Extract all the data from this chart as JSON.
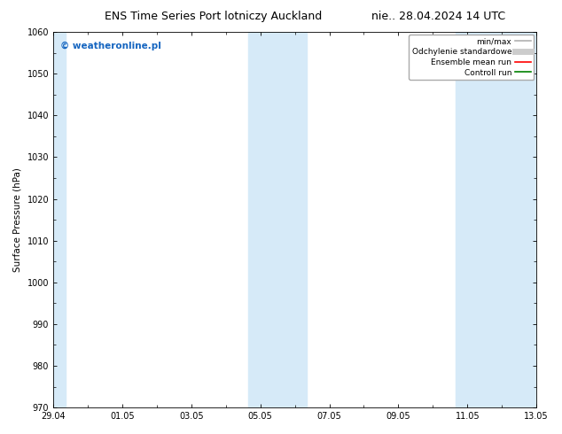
{
  "title": "ENS Time Series Port lotniczy Auckland",
  "title2": "nie.. 28.04.2024 14 UTC",
  "ylabel": "Surface Pressure (hPa)",
  "ylim": [
    970,
    1060
  ],
  "yticks": [
    970,
    980,
    990,
    1000,
    1010,
    1020,
    1030,
    1040,
    1050,
    1060
  ],
  "xtick_labels": [
    "29.04",
    "01.05",
    "03.05",
    "05.05",
    "07.05",
    "09.05",
    "11.05",
    "13.05"
  ],
  "xtick_positions": [
    0,
    2,
    4,
    6,
    8,
    10,
    12,
    14
  ],
  "xlim": [
    0,
    14
  ],
  "background_color": "#ffffff",
  "plot_bg_color": "#ffffff",
  "shaded_regions": [
    {
      "x_start": 0.0,
      "x_end": 0.35,
      "color": "#d6eaf8"
    },
    {
      "x_start": 5.65,
      "x_end": 7.35,
      "color": "#d6eaf8"
    },
    {
      "x_start": 11.65,
      "x_end": 14.0,
      "color": "#d6eaf8"
    }
  ],
  "watermark_text": "© weatheronline.pl",
  "watermark_color": "#1565c0",
  "legend_entries": [
    {
      "label": "min/max",
      "color": "#b0b0b0",
      "lw": 1.2,
      "style": "solid"
    },
    {
      "label": "Odchylenie standardowe",
      "color": "#cccccc",
      "lw": 5,
      "style": "solid"
    },
    {
      "label": "Ensemble mean run",
      "color": "#ff0000",
      "lw": 1.2,
      "style": "solid"
    },
    {
      "label": "Controll run",
      "color": "#008000",
      "lw": 1.2,
      "style": "solid"
    }
  ],
  "font_size_title": 9,
  "font_size_axis": 7.5,
  "font_size_tick": 7,
  "font_size_legend": 6.5,
  "font_size_watermark": 7.5
}
